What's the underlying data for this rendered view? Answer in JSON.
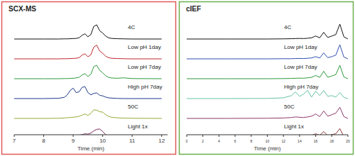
{
  "chart_data": [
    {
      "type": "line",
      "title": "SCX-MS",
      "x_label": "Time (min)",
      "x": [
        7,
        8,
        8.5,
        8.7,
        8.8,
        8.9,
        9.0,
        9.1,
        9.2,
        9.3,
        9.4,
        9.5,
        9.6,
        9.7,
        9.8,
        9.9,
        10.0,
        10.1,
        10.2,
        10.3,
        10.5,
        10.7,
        11,
        12
      ],
      "xlim": [
        7,
        12.2
      ],
      "xticks": [
        7,
        8,
        9,
        10,
        11,
        12
      ],
      "ylim": [
        0,
        100
      ],
      "tick_labels": "x",
      "series": [
        {
          "name": "4C",
          "color": "#111111",
          "values": [
            0,
            0,
            0,
            1,
            1,
            2,
            3,
            4,
            8,
            25,
            35,
            15,
            30,
            85,
            95,
            55,
            40,
            20,
            8,
            4,
            2,
            1,
            0,
            0
          ]
        },
        {
          "name": "Low pH 1day",
          "color": "#c0282d",
          "values": [
            0,
            0,
            0,
            1,
            1,
            2,
            3,
            4,
            8,
            25,
            34,
            14,
            28,
            80,
            92,
            52,
            38,
            18,
            8,
            4,
            2,
            1,
            0,
            0
          ]
        },
        {
          "name": "Low pH 7day",
          "color": "#2e9a3c",
          "values": [
            0,
            0,
            0,
            1,
            1,
            2,
            3,
            5,
            9,
            25,
            34,
            15,
            30,
            82,
            90,
            55,
            40,
            20,
            9,
            5,
            3,
            6,
            1,
            0
          ]
        },
        {
          "name": "High pH 7day",
          "color": "#1f3a8a",
          "values": [
            0,
            0,
            2,
            8,
            25,
            55,
            70,
            40,
            45,
            75,
            80,
            40,
            25,
            35,
            38,
            22,
            18,
            10,
            5,
            3,
            1,
            0,
            0,
            0
          ]
        },
        {
          "name": "50C",
          "color": "#9aa832",
          "values": [
            0,
            0,
            1,
            3,
            5,
            6,
            8,
            10,
            14,
            22,
            30,
            20,
            35,
            58,
            55,
            45,
            42,
            25,
            14,
            8,
            4,
            2,
            1,
            0
          ]
        },
        {
          "name": "Light 1x",
          "color": "#7a2a5a",
          "values": [
            0,
            0,
            2,
            6,
            10,
            12,
            14,
            16,
            20,
            25,
            30,
            28,
            35,
            50,
            60,
            62,
            45,
            25,
            12,
            6,
            3,
            1,
            0,
            0
          ]
        }
      ]
    },
    {
      "type": "line",
      "title": "cIEF",
      "x_label": "Time (min)",
      "x": [
        0,
        5,
        10,
        12,
        13,
        13.5,
        14,
        14.5,
        15,
        15.5,
        16,
        16.5,
        17,
        17.5,
        18,
        18.5,
        19,
        19.5,
        20
      ],
      "xlim": [
        0,
        20
      ],
      "xticks": [
        0,
        2,
        4,
        6,
        8,
        10,
        12,
        14,
        16,
        18,
        20
      ],
      "ylim": [
        0,
        100
      ],
      "tick_labels": "x",
      "series": [
        {
          "name": "4C",
          "color": "#111111",
          "values": [
            0,
            0,
            0,
            1,
            2,
            3,
            4,
            3,
            5,
            8,
            20,
            8,
            45,
            10,
            20,
            30,
            100,
            15,
            0
          ]
        },
        {
          "name": "Low pH 1day",
          "color": "#3050b0",
          "values": [
            0,
            0,
            0,
            1,
            1,
            2,
            3,
            2,
            4,
            6,
            15,
            6,
            40,
            8,
            15,
            25,
            95,
            12,
            0
          ]
        },
        {
          "name": "Low pH 7day",
          "color": "#2e9a3c",
          "values": [
            0,
            0,
            0,
            1,
            2,
            3,
            4,
            3,
            6,
            9,
            22,
            9,
            50,
            10,
            18,
            28,
            90,
            12,
            0
          ]
        },
        {
          "name": "High pH 7day",
          "color": "#66c2a5",
          "values": [
            0,
            0,
            1,
            5,
            20,
            45,
            15,
            30,
            55,
            10,
            50,
            20,
            55,
            15,
            20,
            10,
            40,
            8,
            0
          ]
        },
        {
          "name": "50C",
          "color": "#8e3a6a",
          "values": [
            0,
            0,
            1,
            3,
            6,
            10,
            8,
            6,
            10,
            15,
            30,
            12,
            50,
            15,
            25,
            35,
            75,
            12,
            0
          ]
        },
        {
          "name": "Light 1x",
          "color": "#8b3a3a",
          "values": [
            0,
            0,
            2,
            5,
            10,
            15,
            12,
            10,
            15,
            20,
            30,
            20,
            45,
            18,
            25,
            30,
            65,
            10,
            0
          ]
        }
      ]
    }
  ]
}
